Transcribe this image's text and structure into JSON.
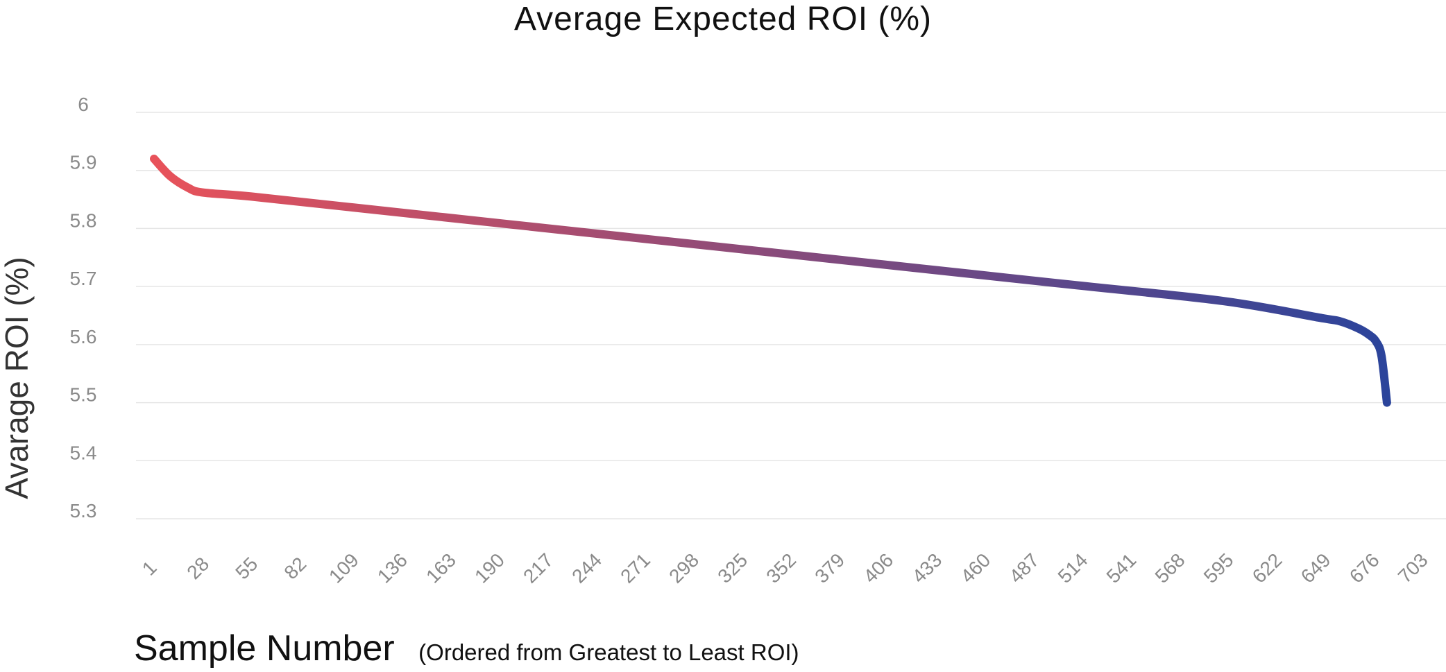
{
  "chart_data": {
    "type": "line",
    "title": "Average Expected ROI (%)",
    "ylabel": "Avarage ROI (%)",
    "xlabel": "Sample Number",
    "xlabel_note": "(Ordered from Greatest to Least ROI)",
    "ylim": [
      5.3,
      6.0
    ],
    "xlim": [
      1,
      703
    ],
    "y_ticks": [
      "6",
      "5.9",
      "5.8",
      "5.7",
      "5.6",
      "5.5",
      "5.4",
      "5.3"
    ],
    "x_ticks": [
      "1",
      "28",
      "55",
      "82",
      "109",
      "136",
      "163",
      "190",
      "217",
      "244",
      "271",
      "298",
      "325",
      "352",
      "379",
      "406",
      "433",
      "460",
      "487",
      "514",
      "541",
      "568",
      "595",
      "622",
      "649",
      "676",
      "703"
    ],
    "grid": true,
    "legend": "none",
    "gradient_colors": [
      "#e8525a",
      "#2b449b"
    ],
    "series": [
      {
        "x": [
          1,
          10,
          20,
          28,
          55,
          109,
          190,
          271,
          352,
          433,
          514,
          595,
          649,
          660,
          670,
          676,
          680,
          683,
          686
        ],
        "y": [
          5.92,
          5.89,
          5.87,
          5.862,
          5.855,
          5.837,
          5.81,
          5.783,
          5.756,
          5.729,
          5.702,
          5.675,
          5.646,
          5.64,
          5.628,
          5.617,
          5.605,
          5.58,
          5.5
        ]
      }
    ]
  }
}
